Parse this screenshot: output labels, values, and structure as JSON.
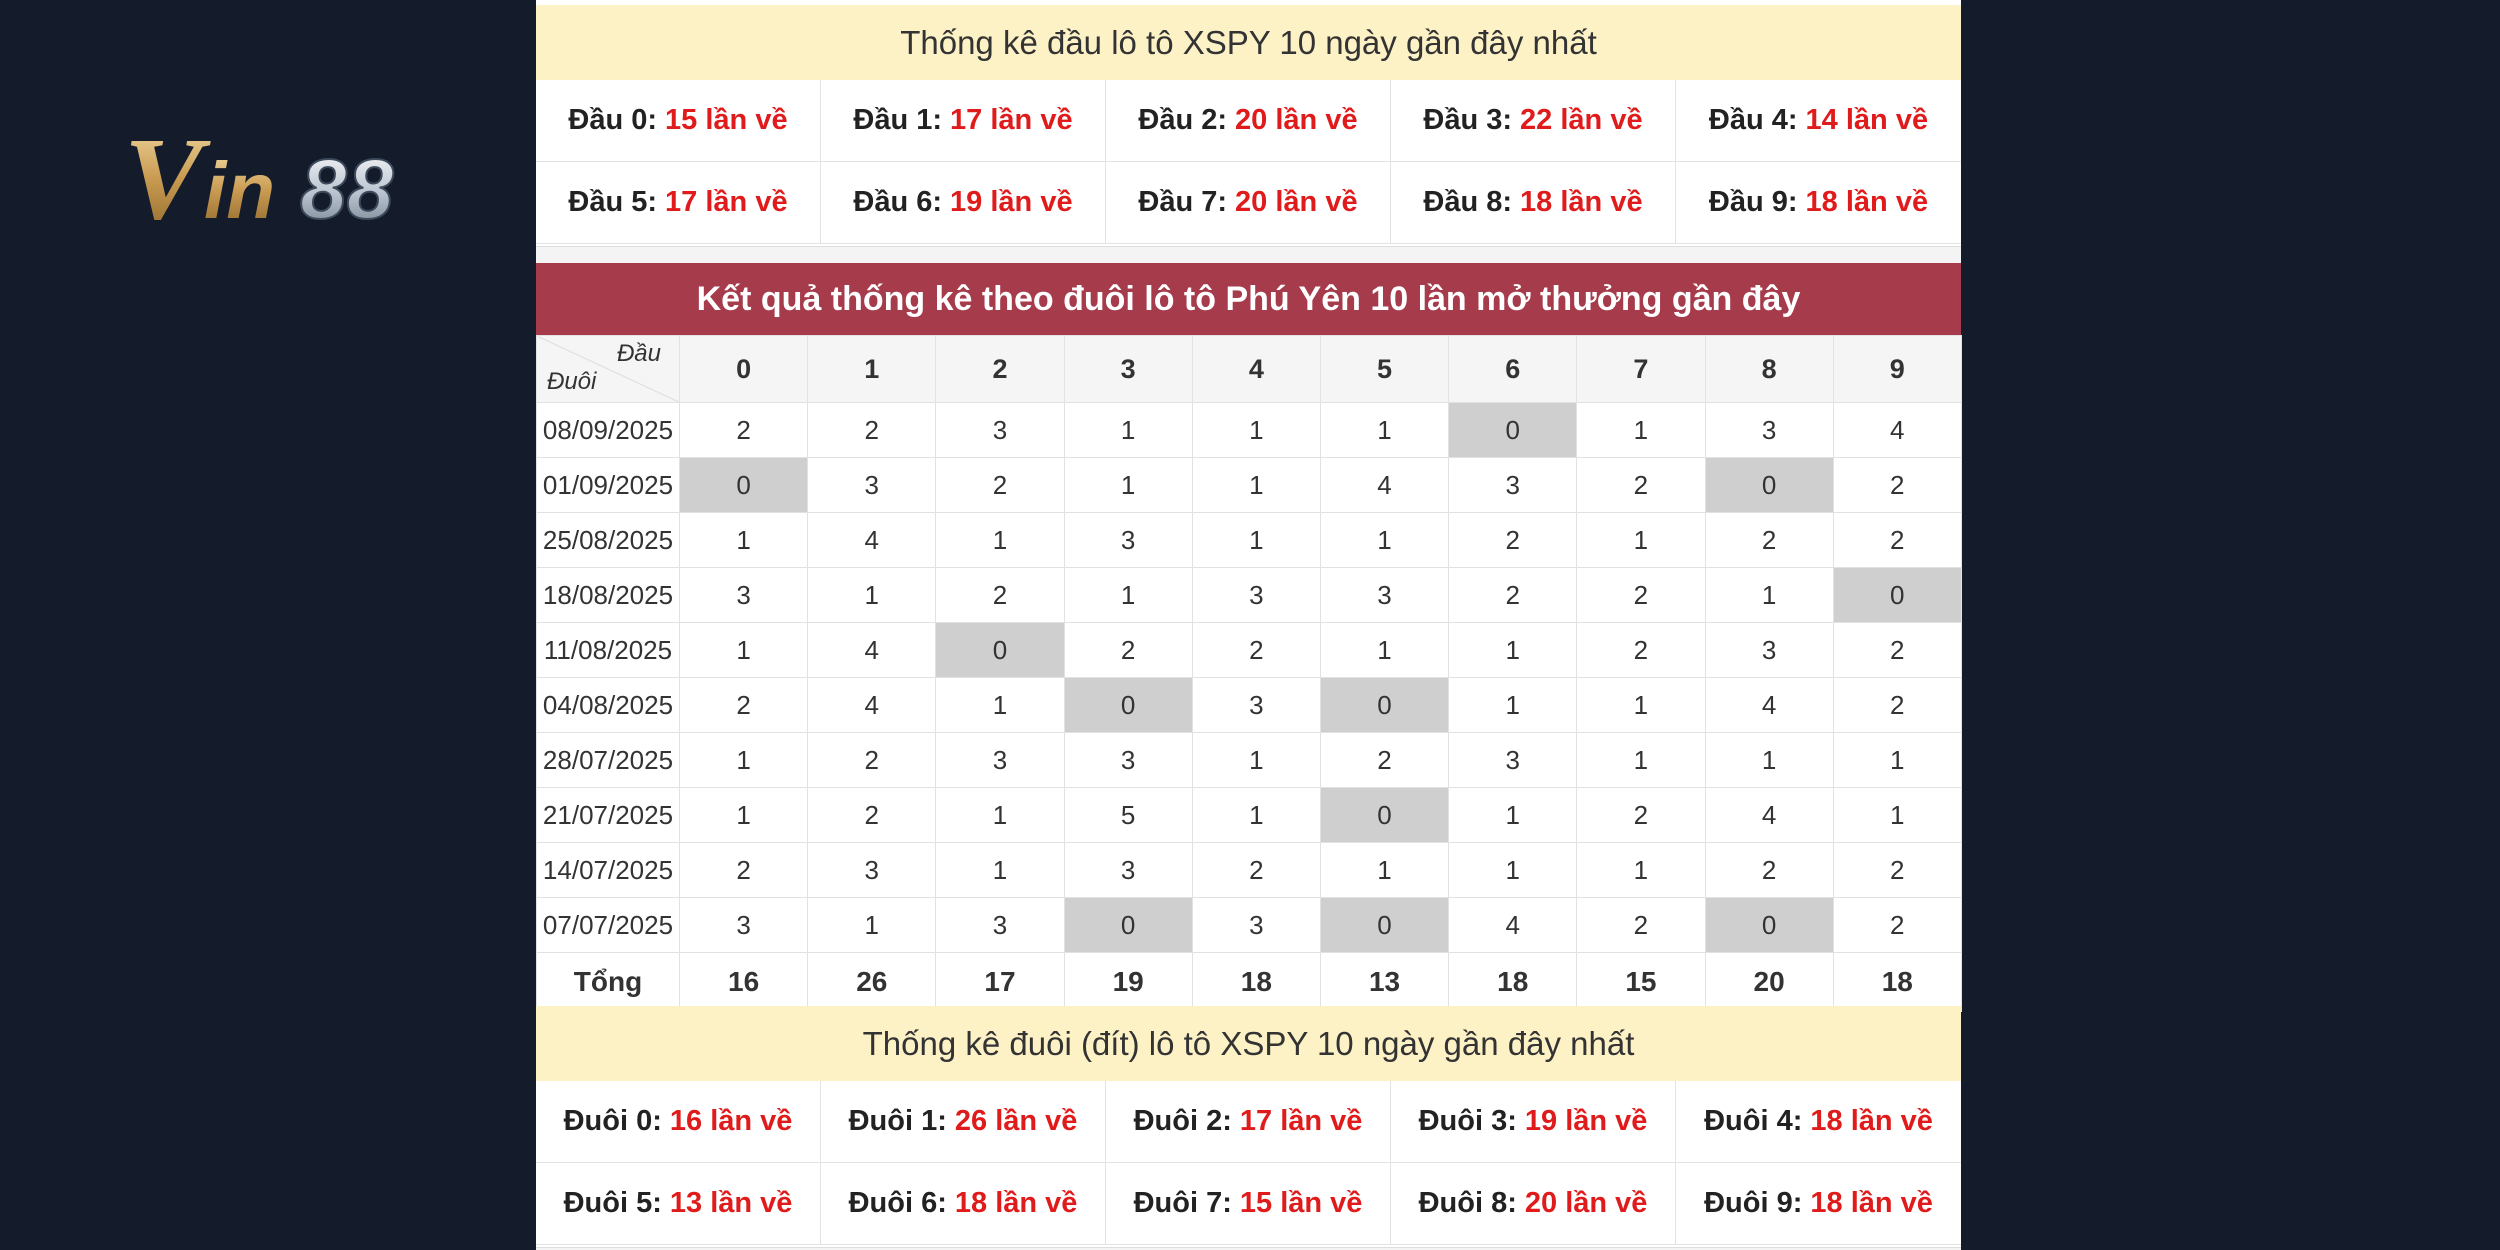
{
  "logo": {
    "text": "Vin88"
  },
  "dau_section": {
    "title": "Thống kê đầu lô tô XSPY 10 ngày gần đây nhất",
    "items": [
      {
        "label": "Đầu 0:",
        "value": "15 lần về"
      },
      {
        "label": "Đầu 1:",
        "value": "17 lần về"
      },
      {
        "label": "Đầu 2:",
        "value": "20 lần về"
      },
      {
        "label": "Đầu 3:",
        "value": "22 lần về"
      },
      {
        "label": "Đầu 4:",
        "value": "14 lần về"
      },
      {
        "label": "Đầu 5:",
        "value": "17 lần về"
      },
      {
        "label": "Đầu 6:",
        "value": "19 lần về"
      },
      {
        "label": "Đầu 7:",
        "value": "20 lần về"
      },
      {
        "label": "Đầu 8:",
        "value": "18 lần về"
      },
      {
        "label": "Đầu 9:",
        "value": "18 lần về"
      }
    ]
  },
  "result_table": {
    "title": "Kết quả thống kê theo đuôi lô tô Phú Yên 10 lần mở thưởng gần đây",
    "corner_top": "Đầu",
    "corner_bottom": "Đuôi",
    "columns": [
      "0",
      "1",
      "2",
      "3",
      "4",
      "5",
      "6",
      "7",
      "8",
      "9"
    ],
    "rows": [
      {
        "date": "08/09/2025",
        "values": [
          "2",
          "2",
          "3",
          "1",
          "1",
          "1",
          "0",
          "1",
          "3",
          "4"
        ]
      },
      {
        "date": "01/09/2025",
        "values": [
          "0",
          "3",
          "2",
          "1",
          "1",
          "4",
          "3",
          "2",
          "0",
          "2"
        ]
      },
      {
        "date": "25/08/2025",
        "values": [
          "1",
          "4",
          "1",
          "3",
          "1",
          "1",
          "2",
          "1",
          "2",
          "2"
        ]
      },
      {
        "date": "18/08/2025",
        "values": [
          "3",
          "1",
          "2",
          "1",
          "3",
          "3",
          "2",
          "2",
          "1",
          "0"
        ]
      },
      {
        "date": "11/08/2025",
        "values": [
          "1",
          "4",
          "0",
          "2",
          "2",
          "1",
          "1",
          "2",
          "3",
          "2"
        ]
      },
      {
        "date": "04/08/2025",
        "values": [
          "2",
          "4",
          "1",
          "0",
          "3",
          "0",
          "1",
          "1",
          "4",
          "2"
        ]
      },
      {
        "date": "28/07/2025",
        "values": [
          "1",
          "2",
          "3",
          "3",
          "1",
          "2",
          "3",
          "1",
          "1",
          "1"
        ]
      },
      {
        "date": "21/07/2025",
        "values": [
          "1",
          "2",
          "1",
          "5",
          "1",
          "0",
          "1",
          "2",
          "4",
          "1"
        ]
      },
      {
        "date": "14/07/2025",
        "values": [
          "2",
          "3",
          "1",
          "3",
          "2",
          "1",
          "1",
          "1",
          "2",
          "2"
        ]
      },
      {
        "date": "07/07/2025",
        "values": [
          "3",
          "1",
          "3",
          "0",
          "3",
          "0",
          "4",
          "2",
          "0",
          "2"
        ]
      }
    ],
    "total_label": "Tổng",
    "totals": [
      "16",
      "26",
      "17",
      "19",
      "18",
      "13",
      "18",
      "15",
      "20",
      "18"
    ]
  },
  "duoi_section": {
    "title": "Thống kê đuôi (đít) lô tô XSPY 10 ngày gần đây nhất",
    "items": [
      {
        "label": "Đuôi 0:",
        "value": "16 lần về"
      },
      {
        "label": "Đuôi 1:",
        "value": "26 lần về"
      },
      {
        "label": "Đuôi 2:",
        "value": "17 lần về"
      },
      {
        "label": "Đuôi 3:",
        "value": "19 lần về"
      },
      {
        "label": "Đuôi 4:",
        "value": "18 lần về"
      },
      {
        "label": "Đuôi 5:",
        "value": "13 lần về"
      },
      {
        "label": "Đuôi 6:",
        "value": "18 lần về"
      },
      {
        "label": "Đuôi 7:",
        "value": "15 lần về"
      },
      {
        "label": "Đuôi 8:",
        "value": "20 lần về"
      },
      {
        "label": "Đuôi 9:",
        "value": "18 lần về"
      }
    ]
  },
  "colors": {
    "background": "#141b2b",
    "header_red": "#a63b4c",
    "title_yellow": "#fdf1c6",
    "value_red": "#e01b1b",
    "zero_cell": "#cfcfcf"
  }
}
